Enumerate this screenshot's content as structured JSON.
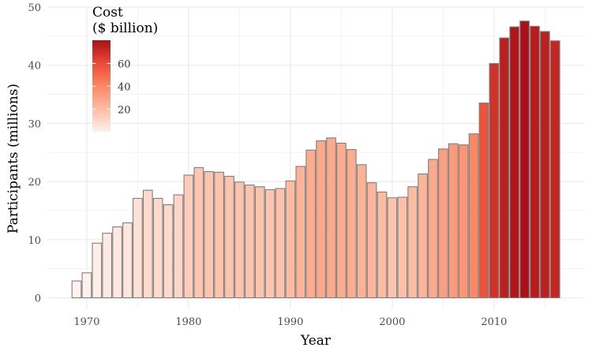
{
  "chart_data": {
    "type": "bar",
    "xlabel": "Year",
    "ylabel": "Participants (millions)",
    "xlim": [
      1966,
      2019
    ],
    "ylim": [
      -2,
      50
    ],
    "x_ticks": [
      1970,
      1980,
      1990,
      2000,
      2010
    ],
    "y_ticks": [
      0,
      10,
      20,
      30,
      40,
      50
    ],
    "grid": true,
    "x": [
      1969,
      1970,
      1971,
      1972,
      1973,
      1974,
      1975,
      1976,
      1977,
      1978,
      1979,
      1980,
      1981,
      1982,
      1983,
      1984,
      1985,
      1986,
      1987,
      1988,
      1989,
      1990,
      1991,
      1992,
      1993,
      1994,
      1995,
      1996,
      1997,
      1998,
      1999,
      2000,
      2001,
      2002,
      2003,
      2004,
      2005,
      2006,
      2007,
      2008,
      2009,
      2010,
      2011,
      2012,
      2013,
      2014,
      2015,
      2016
    ],
    "values": [
      2.9,
      4.3,
      9.4,
      11.1,
      12.2,
      12.9,
      17.1,
      18.5,
      17.1,
      16.0,
      17.7,
      21.1,
      22.4,
      21.7,
      21.6,
      20.9,
      19.9,
      19.4,
      19.1,
      18.6,
      18.8,
      20.1,
      22.6,
      25.4,
      27.0,
      27.5,
      26.6,
      25.5,
      22.9,
      19.8,
      18.2,
      17.2,
      17.3,
      19.1,
      21.3,
      23.8,
      25.6,
      26.5,
      26.3,
      28.2,
      33.5,
      40.3,
      44.7,
      46.6,
      47.6,
      46.7,
      45.8,
      44.2
    ],
    "fill_values": [
      0.25,
      0.55,
      1.8,
      2.8,
      3.6,
      4.4,
      6.6,
      8.7,
      8.7,
      8.7,
      10.6,
      14.1,
      16.2,
      16.8,
      17.1,
      17.1,
      17.2,
      17.4,
      17.1,
      16.7,
      17.5,
      20.1,
      23.5,
      26.2,
      27.5,
      26.9,
      26.1,
      25.6,
      23.9,
      22.4,
      19.9,
      17.2,
      18.0,
      20.0,
      22.8,
      27.2,
      31.1,
      33.1,
      35.1,
      40.4,
      57.7,
      68.6,
      75.0,
      78.4,
      80.3,
      76.1,
      74.9,
      72.6
    ],
    "fill_legend": {
      "title_line1": "Cost",
      "title_line2": "($ billion)",
      "ticks": [
        20,
        40,
        60
      ],
      "range": [
        0.25,
        80.3
      ],
      "colors": [
        "#fff1ed",
        "#fdbba1",
        "#fb8865",
        "#eb4a37",
        "#aa1016"
      ]
    },
    "bar_outline": "#7f7f7f",
    "grid_color": "#ebebeb"
  }
}
